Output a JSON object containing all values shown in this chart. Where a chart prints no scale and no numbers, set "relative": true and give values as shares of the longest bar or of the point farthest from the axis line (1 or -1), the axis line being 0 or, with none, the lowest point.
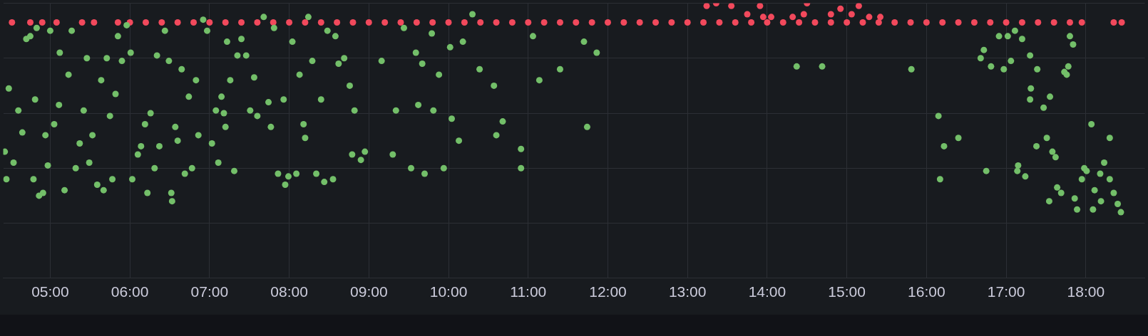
{
  "chart_data": {
    "type": "scatter",
    "relative": true,
    "grid": true,
    "marker": "circle",
    "legend": false,
    "xlim": [
      4.41,
      18.74
    ],
    "xticks": [
      {
        "value": 5,
        "label": "05:00"
      },
      {
        "value": 6,
        "label": "06:00"
      },
      {
        "value": 7,
        "label": "07:00"
      },
      {
        "value": 8,
        "label": "08:00"
      },
      {
        "value": 9,
        "label": "09:00"
      },
      {
        "value": 10,
        "label": "10:00"
      },
      {
        "value": 11,
        "label": "11:00"
      },
      {
        "value": 12,
        "label": "12:00"
      },
      {
        "value": 13,
        "label": "13:00"
      },
      {
        "value": 14,
        "label": "14:00"
      },
      {
        "value": 15,
        "label": "15:00"
      },
      {
        "value": 16,
        "label": "16:00"
      },
      {
        "value": 17,
        "label": "17:00"
      },
      {
        "value": 18,
        "label": "18:00"
      }
    ],
    "series": [
      {
        "color": "#73bf69",
        "x": [
          4.48,
          4.43,
          4.45,
          4.54,
          4.6,
          4.65,
          4.7,
          4.75,
          4.81,
          4.83,
          4.79,
          4.86,
          4.91,
          4.94,
          4.97,
          5.0,
          5.05,
          5.12,
          5.11,
          5.18,
          5.23,
          5.27,
          5.32,
          5.37,
          5.42,
          5.46,
          5.49,
          5.53,
          5.59,
          5.64,
          5.67,
          5.71,
          5.75,
          5.78,
          5.82,
          5.85,
          5.9,
          5.96,
          6.01,
          6.03,
          6.1,
          6.14,
          6.19,
          6.22,
          6.26,
          6.31,
          6.34,
          6.37,
          6.44,
          6.49,
          6.52,
          6.53,
          6.57,
          6.6,
          6.65,
          6.69,
          6.74,
          6.78,
          6.83,
          6.86,
          6.92,
          6.97,
          7.03,
          7.08,
          7.11,
          7.15,
          7.18,
          7.2,
          7.22,
          7.26,
          7.31,
          7.35,
          7.4,
          7.46,
          7.51,
          7.56,
          7.6,
          7.68,
          7.74,
          7.77,
          7.81,
          7.86,
          7.93,
          7.95,
          7.99,
          8.04,
          8.09,
          8.13,
          8.18,
          8.2,
          8.24,
          8.29,
          8.34,
          8.4,
          8.44,
          8.48,
          8.55,
          8.58,
          8.62,
          8.69,
          8.76,
          8.82,
          8.79,
          8.9,
          8.95,
          9.16,
          9.3,
          9.34,
          9.44,
          9.53,
          9.59,
          9.62,
          9.67,
          9.7,
          9.79,
          9.81,
          9.88,
          9.94,
          10.02,
          10.04,
          10.13,
          10.18,
          10.3,
          10.39,
          10.57,
          10.6,
          10.68,
          10.91,
          10.91,
          11.06,
          11.14,
          11.4,
          11.7,
          11.74,
          11.86,
          14.37,
          14.69,
          15.81,
          16.15,
          16.17,
          16.22,
          16.4,
          16.75,
          16.68,
          16.72,
          16.81,
          16.91,
          16.97,
          17.02,
          17.06,
          17.11,
          17.14,
          17.15,
          17.2,
          17.24,
          17.3,
          17.3,
          17.31,
          17.38,
          17.39,
          17.47,
          17.51,
          17.54,
          17.55,
          17.58,
          17.62,
          17.64,
          17.69,
          17.73,
          17.76,
          17.78,
          17.8,
          17.84,
          17.86,
          17.89,
          17.95,
          17.98,
          18.01,
          18.07,
          18.09,
          18.11,
          18.18,
          18.19,
          18.23,
          18.3,
          18.3,
          18.35,
          18.4,
          18.44
        ],
        "values": [
          0.69,
          0.46,
          0.36,
          0.42,
          0.61,
          0.53,
          0.87,
          0.88,
          0.65,
          0.91,
          0.36,
          0.3,
          0.31,
          0.52,
          0.41,
          0.9,
          0.56,
          0.82,
          0.63,
          0.32,
          0.74,
          0.9,
          0.4,
          0.49,
          0.61,
          0.8,
          0.42,
          0.52,
          0.34,
          0.72,
          0.32,
          0.8,
          0.59,
          0.36,
          0.67,
          0.88,
          0.79,
          0.92,
          0.82,
          0.36,
          0.45,
          0.48,
          0.56,
          0.31,
          0.6,
          0.4,
          0.81,
          0.48,
          0.9,
          0.79,
          0.31,
          0.28,
          0.55,
          0.5,
          0.76,
          0.38,
          0.66,
          0.4,
          0.72,
          0.52,
          0.94,
          0.9,
          0.49,
          0.61,
          0.42,
          0.66,
          0.6,
          0.55,
          0.86,
          0.72,
          0.39,
          0.81,
          0.87,
          0.81,
          0.61,
          0.73,
          0.59,
          0.95,
          0.64,
          0.55,
          0.91,
          0.38,
          0.65,
          0.34,
          0.37,
          0.86,
          0.38,
          0.74,
          0.56,
          0.51,
          0.95,
          0.79,
          0.38,
          0.65,
          0.35,
          0.9,
          0.36,
          0.88,
          0.78,
          0.8,
          0.7,
          0.61,
          0.45,
          0.43,
          0.46,
          0.79,
          0.45,
          0.61,
          0.91,
          0.4,
          0.82,
          0.63,
          0.78,
          0.38,
          0.89,
          0.61,
          0.74,
          0.4,
          0.84,
          0.58,
          0.5,
          0.86,
          0.96,
          0.76,
          0.7,
          0.52,
          0.57,
          0.47,
          0.4,
          0.88,
          0.72,
          0.76,
          0.86,
          0.55,
          0.82,
          0.77,
          0.77,
          0.76,
          0.59,
          0.36,
          0.48,
          0.51,
          0.39,
          0.8,
          0.83,
          0.77,
          0.88,
          0.76,
          0.88,
          0.79,
          0.9,
          0.39,
          0.41,
          0.87,
          0.37,
          0.81,
          0.65,
          0.69,
          0.48,
          0.76,
          0.62,
          0.51,
          0.28,
          0.66,
          0.46,
          0.44,
          0.33,
          0.31,
          0.75,
          0.74,
          0.77,
          0.88,
          0.85,
          0.29,
          0.25,
          0.36,
          0.4,
          0.39,
          0.56,
          0.25,
          0.32,
          0.38,
          0.28,
          0.42,
          0.51,
          0.36,
          0.31,
          0.27,
          0.24
        ]
      },
      {
        "color": "#f2495c",
        "x": [
          4.52,
          4.75,
          4.9,
          5.08,
          5.4,
          5.55,
          5.85,
          6.0,
          6.2,
          6.4,
          6.6,
          6.8,
          7.0,
          7.2,
          7.4,
          7.6,
          7.8,
          8.0,
          8.2,
          8.4,
          8.6,
          8.8,
          9.0,
          9.2,
          9.4,
          9.6,
          9.8,
          10.0,
          10.2,
          10.4,
          10.6,
          10.8,
          11.0,
          11.2,
          11.4,
          11.6,
          11.8,
          12.0,
          12.2,
          12.4,
          12.6,
          12.8,
          13.0,
          13.2,
          13.4,
          13.6,
          13.8,
          14.0,
          14.2,
          14.4,
          14.6,
          14.8,
          15.0,
          15.2,
          15.4,
          15.6,
          15.8,
          16.0,
          16.2,
          16.4,
          16.6,
          16.8,
          17.0,
          17.2,
          17.4,
          17.6,
          17.8,
          17.95,
          18.35,
          18.45,
          13.24,
          13.36,
          13.55,
          13.75,
          13.91,
          13.95,
          14.05,
          14.32,
          14.46,
          14.5,
          14.8,
          14.92,
          15.06,
          15.15,
          15.28,
          15.42
        ],
        "values": [
          0.93,
          0.93,
          0.93,
          0.93,
          0.93,
          0.93,
          0.93,
          0.93,
          0.93,
          0.93,
          0.93,
          0.93,
          0.93,
          0.93,
          0.93,
          0.93,
          0.93,
          0.93,
          0.93,
          0.93,
          0.93,
          0.93,
          0.93,
          0.93,
          0.93,
          0.93,
          0.93,
          0.93,
          0.93,
          0.93,
          0.93,
          0.93,
          0.93,
          0.93,
          0.93,
          0.93,
          0.93,
          0.93,
          0.93,
          0.93,
          0.93,
          0.93,
          0.93,
          0.93,
          0.93,
          0.93,
          0.93,
          0.93,
          0.93,
          0.93,
          0.93,
          0.93,
          0.93,
          0.93,
          0.93,
          0.93,
          0.93,
          0.93,
          0.93,
          0.93,
          0.93,
          0.93,
          0.93,
          0.93,
          0.93,
          0.93,
          0.93,
          0.93,
          0.93,
          0.93,
          0.99,
          1.0,
          0.99,
          0.96,
          0.99,
          0.95,
          0.95,
          0.95,
          0.96,
          1.0,
          0.96,
          0.98,
          0.96,
          0.99,
          0.95,
          0.95
        ]
      }
    ]
  }
}
